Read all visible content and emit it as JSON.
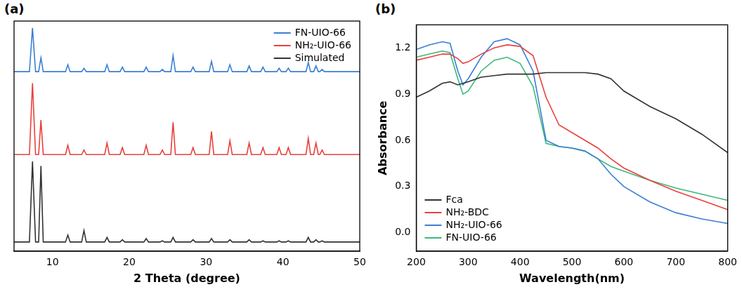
{
  "chart_data": [
    {
      "type": "line",
      "title": "(a)",
      "x_label": "2 Theta (degree)",
      "x": [
        5,
        7.0,
        7.4,
        7.8,
        8.2,
        8.5,
        8.8,
        11.7,
        12.0,
        12.3,
        13.8,
        14.1,
        14.4,
        16.8,
        17.1,
        17.4,
        18.8,
        19.1,
        19.4,
        21.9,
        22.2,
        22.5,
        24.0,
        24.3,
        24.6,
        25.4,
        25.7,
        26.0,
        28.0,
        28.3,
        28.6,
        30.4,
        30.7,
        31.0,
        32.8,
        33.1,
        33.4,
        35.3,
        35.6,
        35.9,
        37.1,
        37.4,
        37.7,
        39.2,
        39.5,
        39.8,
        40.4,
        40.7,
        41.0,
        43.0,
        43.3,
        43.6,
        44.0,
        44.3,
        44.6,
        44.8,
        45.1,
        45.4,
        50
      ],
      "series": [
        {
          "name": "FN-UIO-66",
          "color": "#3a7fd5",
          "values": [
            78,
            78,
            97,
            78,
            78,
            84,
            78,
            78,
            81,
            78,
            78,
            79.5,
            78,
            78,
            81,
            78,
            78,
            80,
            78,
            78,
            80,
            78,
            78,
            79,
            78,
            78,
            85,
            78,
            78,
            80,
            78,
            78,
            82.5,
            78,
            78,
            81,
            78,
            78,
            80.5,
            78,
            78,
            80,
            78,
            78,
            79.5,
            78,
            78,
            79.5,
            78,
            78,
            82,
            78,
            78,
            80.5,
            78,
            78,
            79,
            78,
            78
          ]
        },
        {
          "name": "NH₂-UIO-66",
          "color": "#e8413c",
          "values": [
            42,
            42,
            73,
            42,
            42,
            57,
            42,
            42,
            46,
            42,
            42,
            44,
            42,
            42,
            47,
            42,
            42,
            45,
            42,
            42,
            46,
            42,
            42,
            44,
            42,
            42,
            56,
            42,
            42,
            45,
            42,
            42,
            52,
            42,
            42,
            48,
            42,
            42,
            47,
            42,
            42,
            45,
            42,
            42,
            45,
            42,
            42,
            45,
            42,
            42,
            49,
            42,
            42,
            47,
            42,
            42,
            44,
            42,
            42
          ]
        },
        {
          "name": "Simulated",
          "color": "#333333",
          "values": [
            4,
            4,
            39,
            4,
            4,
            37,
            4,
            4,
            7,
            4,
            4,
            9,
            4,
            4,
            6,
            4,
            4,
            5,
            4,
            4,
            5.5,
            4,
            4,
            4.5,
            4,
            4,
            6,
            4,
            4,
            5,
            4,
            4,
            5.5,
            4,
            4,
            5,
            4,
            4,
            5,
            4,
            4,
            4.5,
            4,
            4,
            4.5,
            4,
            4,
            4.5,
            4,
            4,
            6,
            4,
            4,
            5,
            4,
            4,
            4.5,
            4,
            4
          ]
        }
      ],
      "xlim": [
        5,
        50
      ],
      "xticks": [
        10,
        20,
        30,
        40,
        50
      ],
      "ylim": [
        0,
        100
      ],
      "tick_labels": "x",
      "grid": false,
      "legend": "top-right"
    },
    {
      "type": "line",
      "title": "(b)",
      "x_label": "Wavelength(nm)",
      "y_label": "Absorbance",
      "x": [
        200,
        225,
        250,
        265,
        280,
        290,
        300,
        325,
        350,
        375,
        400,
        425,
        450,
        475,
        500,
        525,
        550,
        575,
        600,
        650,
        700,
        750,
        800
      ],
      "series": [
        {
          "name": "Fca",
          "color": "#333333",
          "values": [
            0.88,
            0.92,
            0.97,
            0.98,
            0.96,
            0.97,
            0.98,
            1.01,
            1.02,
            1.03,
            1.03,
            1.03,
            1.04,
            1.04,
            1.04,
            1.04,
            1.03,
            1.0,
            0.92,
            0.82,
            0.74,
            0.64,
            0.52
          ]
        },
        {
          "name": "NH₂-BDC",
          "color": "#e8413c",
          "values": [
            1.12,
            1.14,
            1.16,
            1.16,
            1.13,
            1.1,
            1.11,
            1.16,
            1.2,
            1.22,
            1.21,
            1.15,
            0.88,
            0.7,
            0.65,
            0.6,
            0.55,
            0.48,
            0.42,
            0.34,
            0.27,
            0.21,
            0.15
          ]
        },
        {
          "name": "NH₂-UIO-66",
          "color": "#3a7fd5",
          "values": [
            1.19,
            1.22,
            1.24,
            1.23,
            1.05,
            0.96,
            1.0,
            1.14,
            1.24,
            1.26,
            1.22,
            1.05,
            0.6,
            0.56,
            0.55,
            0.53,
            0.48,
            0.38,
            0.3,
            0.2,
            0.13,
            0.09,
            0.06
          ]
        },
        {
          "name": "FN-UIO-66",
          "color": "#3cb878",
          "values": [
            1.14,
            1.16,
            1.18,
            1.17,
            1.0,
            0.9,
            0.92,
            1.05,
            1.12,
            1.14,
            1.1,
            0.95,
            0.58,
            0.56,
            0.55,
            0.53,
            0.48,
            0.43,
            0.4,
            0.34,
            0.29,
            0.25,
            0.21
          ]
        }
      ],
      "xlim": [
        200,
        800
      ],
      "xticks": [
        200,
        300,
        400,
        500,
        600,
        700,
        800
      ],
      "ylim": [
        -0.12,
        1.35
      ],
      "yticks": [
        {
          "value": 0,
          "label": "0.0"
        },
        0.3,
        0.6,
        0.9,
        1.2
      ],
      "grid": false,
      "legend": "bottom-left"
    }
  ]
}
